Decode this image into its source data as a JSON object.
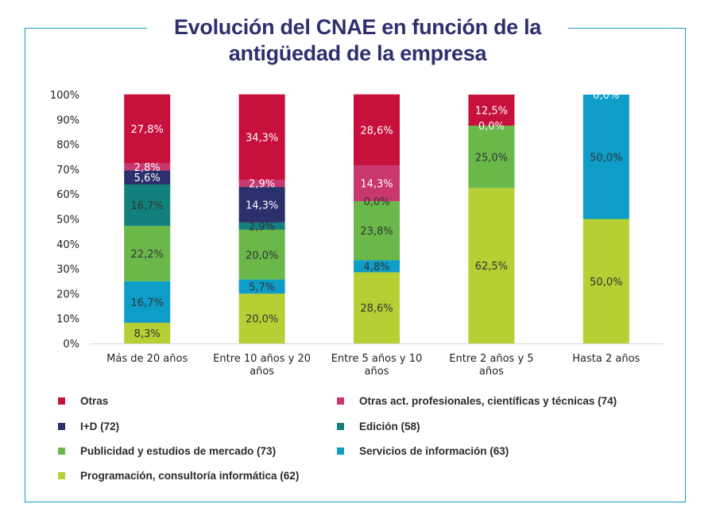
{
  "title_line1": "Evolución del CNAE en función de la",
  "title_line2": "antigüedad de la empresa",
  "chart_data": {
    "type": "bar",
    "stacked": true,
    "percent": true,
    "title": "Evolución del CNAE en función de la antigüedad de la empresa",
    "xlabel": "",
    "ylabel": "",
    "ylim": [
      0,
      100
    ],
    "yticks": [
      "0%",
      "10%",
      "20%",
      "30%",
      "40%",
      "50%",
      "60%",
      "70%",
      "80%",
      "90%",
      "100%"
    ],
    "grid": false,
    "legend_position": "bottom",
    "categories": [
      [
        "Más de 20 años"
      ],
      [
        "Entre 10 años y 20",
        "años"
      ],
      [
        "Entre 5 años y 10",
        "años"
      ],
      [
        "Entre 2 años y 5",
        "años"
      ],
      [
        "Hasta 2 años"
      ]
    ],
    "series": [
      {
        "name": "Programación, consultoría informática (62)",
        "color": "#b5cf34",
        "label_color": "#333333",
        "values": [
          8.3,
          20.0,
          28.6,
          62.5,
          50.0
        ],
        "labels": [
          "8,3%",
          "20,0%",
          "28,6%",
          "62,5%",
          "50,0%"
        ]
      },
      {
        "name": "Servicios de información (63)",
        "color": "#0e9cc8",
        "label_color": "#333333",
        "values": [
          16.7,
          5.7,
          4.8,
          0.0,
          50.0
        ],
        "labels": [
          "16,7%",
          "5,7%",
          "4,8%",
          null,
          "50,0%"
        ]
      },
      {
        "name": "Publicidad y estudios de mercado (73)",
        "color": "#6ab84a",
        "label_color": "#333333",
        "values": [
          22.2,
          20.0,
          23.8,
          25.0,
          0.0
        ],
        "labels": [
          "22,2%",
          "20,0%",
          "23,8%",
          "25,0%",
          null
        ]
      },
      {
        "name": "Edición (58)",
        "color": "#12807d",
        "label_color": "#333333",
        "values": [
          16.7,
          2.9,
          0.0,
          0.0,
          0.0
        ],
        "labels": [
          "16,7%",
          "2,9%",
          "0,0%",
          "0,0%",
          null
        ]
      },
      {
        "name": "I+D (72)",
        "color": "#2b2f6c",
        "label_color": "#ffffff",
        "values": [
          5.6,
          14.3,
          0.0,
          0.0,
          0.0
        ],
        "labels": [
          "5,6%",
          "14,3%",
          null,
          null,
          null
        ]
      },
      {
        "name": "Otras act. profesionales, científicas y técnicas (74)",
        "color": "#c8376e",
        "label_color": "#ffffff",
        "values": [
          2.8,
          2.9,
          14.3,
          0.0,
          0.0
        ],
        "labels": [
          "2,8%",
          "2,9%",
          "14,3%",
          "0,0%",
          null
        ]
      },
      {
        "name": "Otras",
        "color": "#c8103d",
        "label_color": "#ffffff",
        "values": [
          27.8,
          34.3,
          28.6,
          12.5,
          0.0
        ],
        "labels": [
          "27,8%",
          "34,3%",
          "28,6%",
          "12,5%",
          "0,0%"
        ]
      }
    ]
  },
  "legend": [
    {
      "label": "Otras",
      "color": "#c8103d"
    },
    {
      "label": "Otras act. profesionales, científicas y técnicas (74)",
      "color": "#c8376e"
    },
    {
      "label": "I+D (72)",
      "color": "#2b2f6c"
    },
    {
      "label": "Edición (58)",
      "color": "#12807d"
    },
    {
      "label": "Publicidad y estudios de mercado (73)",
      "color": "#6ab84a"
    },
    {
      "label": "Servicios de información (63)",
      "color": "#0e9cc8"
    },
    {
      "label": "Programación, consultoría informática (62)",
      "color": "#b5cf34"
    }
  ],
  "frame_color": "#1a9bc4",
  "title_color": "#2e2f6e"
}
